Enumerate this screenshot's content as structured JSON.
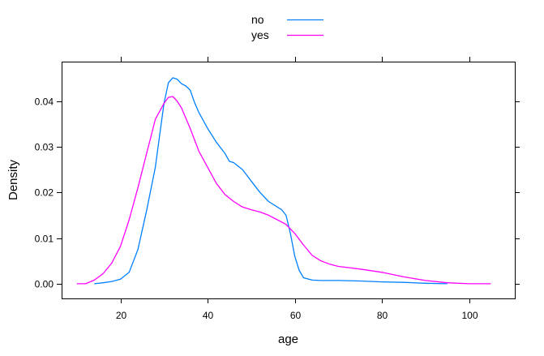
{
  "chart_data": {
    "type": "line",
    "xlabel": "age",
    "ylabel": "Density",
    "xlim": [
      6.5,
      110.5
    ],
    "ylim": [
      -0.00322,
      0.04863
    ],
    "x_ticks": [
      20,
      40,
      60,
      80,
      100
    ],
    "y_ticks": [
      0.0,
      0.01,
      0.02,
      0.03,
      0.04
    ],
    "x_tick_labels": [
      "20",
      "40",
      "60",
      "80",
      "100"
    ],
    "y_tick_labels": [
      "0.00",
      "0.01",
      "0.02",
      "0.03",
      "0.04"
    ],
    "grid": false,
    "legend_position": "top-center",
    "series": [
      {
        "name": "no",
        "color": "#0080ff",
        "x": [
          14,
          16,
          18,
          20,
          22,
          24,
          26,
          28,
          29,
          30,
          31,
          32,
          33,
          34,
          35,
          36,
          37,
          38,
          40,
          42,
          44,
          45,
          46,
          48,
          50,
          52,
          54,
          56,
          57,
          58,
          59,
          60,
          61,
          62,
          64,
          66,
          68,
          70,
          75,
          80,
          85,
          90,
          95
        ],
        "y": [
          0.0,
          0.0002,
          0.0005,
          0.001,
          0.0025,
          0.0075,
          0.016,
          0.0255,
          0.0325,
          0.0395,
          0.044,
          0.0451,
          0.0448,
          0.0438,
          0.0433,
          0.0424,
          0.0397,
          0.0375,
          0.034,
          0.031,
          0.0285,
          0.0268,
          0.0265,
          0.025,
          0.0225,
          0.02,
          0.018,
          0.0168,
          0.0162,
          0.015,
          0.011,
          0.006,
          0.003,
          0.0013,
          0.0008,
          0.0007,
          0.0007,
          0.0007,
          0.0006,
          0.0004,
          0.0003,
          0.0001,
          0.0
        ]
      },
      {
        "name": "yes",
        "color": "#ff00ff",
        "x": [
          10,
          12,
          14,
          16,
          18,
          20,
          22,
          24,
          26,
          28,
          30,
          31,
          32,
          33,
          34,
          36,
          38,
          40,
          42,
          44,
          46,
          48,
          50,
          52,
          54,
          56,
          58,
          60,
          62,
          64,
          66,
          68,
          70,
          75,
          80,
          85,
          90,
          95,
          100,
          105
        ],
        "y": [
          0.0,
          0.0,
          0.0008,
          0.0022,
          0.0045,
          0.0082,
          0.014,
          0.021,
          0.0285,
          0.036,
          0.0395,
          0.0408,
          0.041,
          0.04,
          0.0385,
          0.034,
          0.029,
          0.0255,
          0.022,
          0.0195,
          0.018,
          0.0168,
          0.0162,
          0.0157,
          0.015,
          0.014,
          0.013,
          0.011,
          0.0085,
          0.0062,
          0.005,
          0.0043,
          0.0038,
          0.0032,
          0.0025,
          0.0015,
          0.0007,
          0.0002,
          0.0,
          0.0
        ]
      }
    ]
  }
}
